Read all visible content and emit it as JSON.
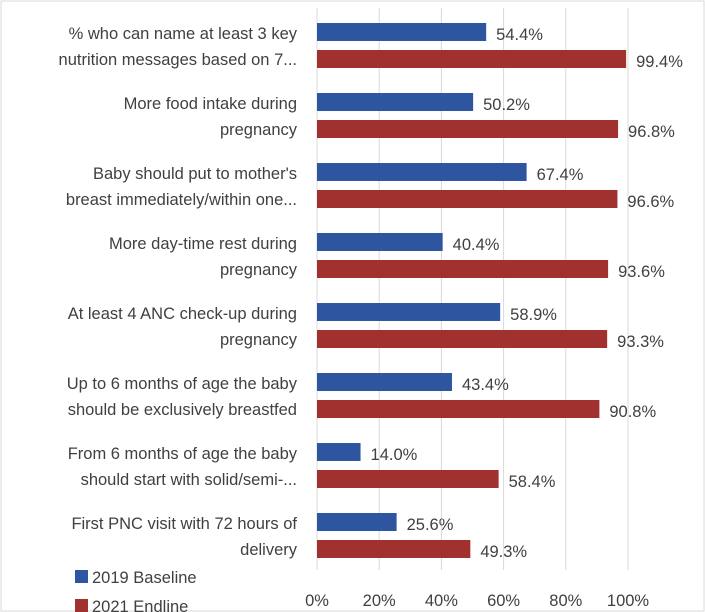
{
  "chart_data": {
    "type": "bar",
    "orientation": "horizontal",
    "categories": [
      [
        "% who can name at least 3 key",
        "nutrition messages based on 7..."
      ],
      [
        "More food intake during",
        "pregnancy"
      ],
      [
        "Baby should put to mother's",
        "breast immediately/within one..."
      ],
      [
        "More day-time rest during",
        "pregnancy"
      ],
      [
        "At least 4 ANC check-up during",
        "pregnancy"
      ],
      [
        "Up to 6 months of age the baby",
        "should be exclusively breastfed"
      ],
      [
        "From 6 months of age the baby",
        "should start with solid/semi-..."
      ],
      [
        "First PNC visit with 72 hours of",
        "delivery"
      ]
    ],
    "series": [
      {
        "name": "2019 Baseline",
        "color": "#2e55a0",
        "values": [
          54.4,
          50.2,
          67.4,
          40.4,
          58.9,
          43.4,
          14.0,
          25.6
        ],
        "labels": [
          "54.4%",
          "50.2%",
          "67.4%",
          "40.4%",
          "58.9%",
          "43.4%",
          "14.0%",
          "25.6%"
        ]
      },
      {
        "name": "2021 Endline",
        "color": "#a0312e",
        "values": [
          99.4,
          96.8,
          96.6,
          93.6,
          93.3,
          90.8,
          58.4,
          49.3
        ],
        "labels": [
          "99.4%",
          "96.8%",
          "96.6%",
          "93.6%",
          "93.3%",
          "90.8%",
          "58.4%",
          "49.3%"
        ]
      }
    ],
    "x_ticks": [
      "0%",
      "20%",
      "40%",
      "60%",
      "80%",
      "100%"
    ],
    "xlim": [
      0,
      100
    ],
    "grid": true,
    "legend_position": "bottom-left"
  }
}
